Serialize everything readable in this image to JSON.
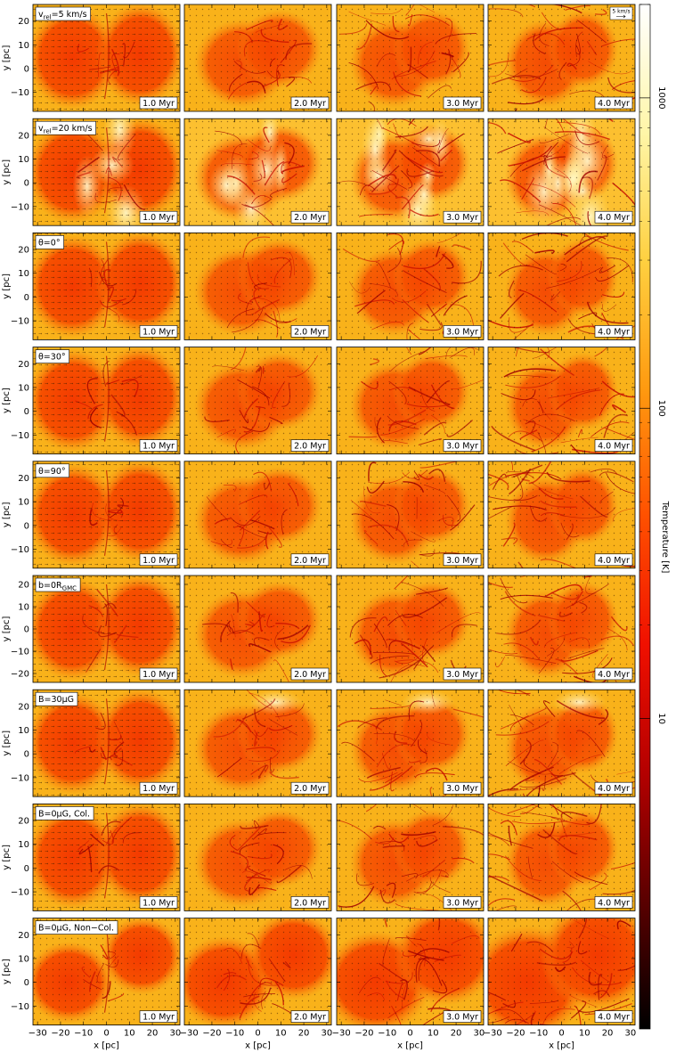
{
  "figure": {
    "time_labels": [
      "1.0 Myr",
      "2.0 Myr",
      "3.0 Myr",
      "4.0 Myr"
    ],
    "rows": [
      {
        "model_label": "v_rel=5 km/s",
        "label_parts": [
          [
            "v",
            ""
          ],
          [
            "rel",
            "sub"
          ],
          [
            "=5 km/s",
            ""
          ]
        ],
        "y_ticks": [
          20,
          10,
          0,
          -10
        ],
        "ylim": [
          -18,
          27
        ]
      },
      {
        "model_label": "v_rel=20 km/s",
        "label_parts": [
          [
            "v",
            ""
          ],
          [
            "rel",
            "sub"
          ],
          [
            "=20 km/s",
            ""
          ]
        ],
        "y_ticks": [
          20,
          10,
          0,
          -10
        ],
        "ylim": [
          -18,
          27
        ]
      },
      {
        "model_label": "θ=0°",
        "label_parts": [
          [
            "θ=0°",
            ""
          ]
        ],
        "y_ticks": [
          20,
          10,
          0,
          -10
        ],
        "ylim": [
          -18,
          27
        ]
      },
      {
        "model_label": "θ=30°",
        "label_parts": [
          [
            "θ=30°",
            ""
          ]
        ],
        "y_ticks": [
          20,
          10,
          0,
          -10
        ],
        "ylim": [
          -18,
          27
        ]
      },
      {
        "model_label": "θ=90°",
        "label_parts": [
          [
            "θ=90°",
            ""
          ]
        ],
        "y_ticks": [
          20,
          10,
          0,
          -10
        ],
        "ylim": [
          -18,
          27
        ]
      },
      {
        "model_label": "b=0R_GMC",
        "label_parts": [
          [
            "b=0R",
            ""
          ],
          [
            "GMC",
            "sub"
          ]
        ],
        "y_ticks": [
          20,
          10,
          0,
          -10,
          -20
        ],
        "ylim": [
          -24,
          24
        ]
      },
      {
        "model_label": "B=30μG",
        "label_parts": [
          [
            "B=30μG",
            ""
          ]
        ],
        "y_ticks": [
          20,
          10,
          0,
          -10
        ],
        "ylim": [
          -18,
          27
        ]
      },
      {
        "model_label": "B=0μG, Col.",
        "label_parts": [
          [
            "B=0μG, Col.",
            ""
          ]
        ],
        "y_ticks": [
          20,
          10,
          0,
          -10
        ],
        "ylim": [
          -18,
          27
        ]
      },
      {
        "model_label": "B=0μG, Non−Col.",
        "label_parts": [
          [
            "B=0μG, Non−Col.",
            ""
          ]
        ],
        "y_ticks": [
          20,
          10,
          0,
          -10
        ],
        "ylim": [
          -18,
          27
        ]
      }
    ],
    "x_ticks": [
      -30,
      -20,
      -10,
      0,
      10,
      20,
      30
    ],
    "xlim": [
      -32,
      32
    ],
    "xlabel": "x [pc]",
    "ylabel": "y [pc]",
    "velocity_key": "5 km/s",
    "colorbar": {
      "label": "Temperature [K]",
      "scale": "log",
      "range": [
        1,
        2000
      ],
      "ticks": [
        10,
        100,
        1000
      ],
      "colors": [
        "#000000",
        "#5a0000",
        "#b40000",
        "#f01000",
        "#ff5000",
        "#ff9a10",
        "#ffd040",
        "#fff6a8",
        "#ffffff"
      ]
    }
  }
}
